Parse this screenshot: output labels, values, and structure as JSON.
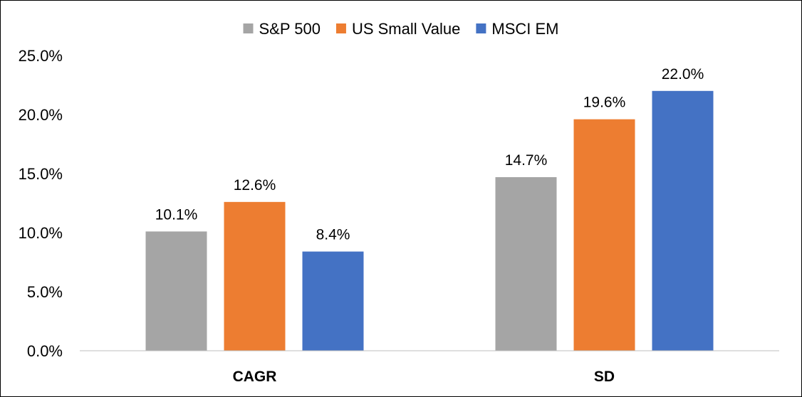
{
  "chart_data": {
    "type": "bar",
    "categories": [
      "CAGR",
      "SD"
    ],
    "series": [
      {
        "name": "S&P 500",
        "color": "#a5a5a5",
        "values": [
          10.1,
          14.7
        ],
        "labels": [
          "10.1%",
          "14.7%"
        ]
      },
      {
        "name": "US Small Value",
        "color": "#ed7d31",
        "values": [
          12.6,
          19.6
        ],
        "labels": [
          "12.6%",
          "19.6%"
        ]
      },
      {
        "name": "MSCI EM",
        "color": "#4472c4",
        "values": [
          8.4,
          22.0
        ],
        "labels": [
          "8.4%",
          "22.0%"
        ]
      }
    ],
    "ylim": [
      0,
      25
    ],
    "yticks": [
      0,
      5,
      10,
      15,
      20,
      25
    ],
    "ytick_labels": [
      "0.0%",
      "5.0%",
      "10.0%",
      "15.0%",
      "20.0%",
      "25.0%"
    ],
    "legend_position": "top-center",
    "grid": false
  }
}
